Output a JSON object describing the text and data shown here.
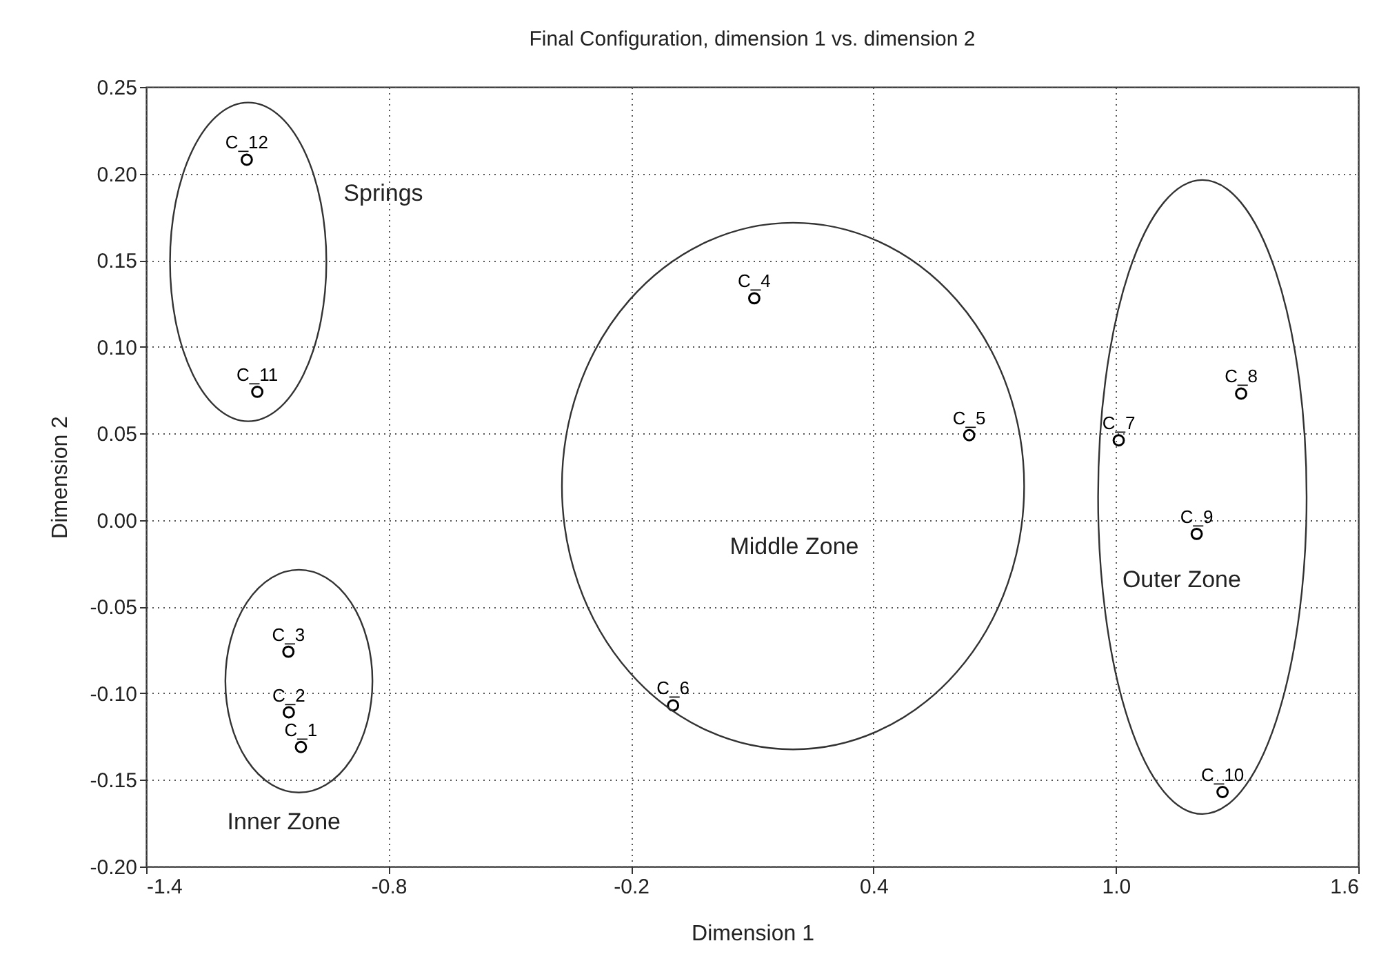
{
  "chart_data": {
    "type": "scatter",
    "title": "Final Configuration, dimension 1 vs. dimension 2",
    "xlabel": "Dimension 1",
    "ylabel": "Dimension 2",
    "series": [
      {
        "name": "C_1",
        "color": "#000000",
        "x": [
          -1.017
        ],
        "values": [
          -0.131
        ]
      },
      {
        "name": "C_2",
        "color": "#000000",
        "x": [
          -1.047
        ],
        "values": [
          -0.111
        ]
      },
      {
        "name": "C_3",
        "color": "#000000",
        "x": [
          -1.048
        ],
        "values": [
          -0.076
        ]
      },
      {
        "name": "C_4",
        "color": "#000000",
        "x": [
          0.105
        ],
        "values": [
          0.128
        ]
      },
      {
        "name": "C_5",
        "color": "#000000",
        "x": [
          0.637
        ],
        "values": [
          0.049
        ]
      },
      {
        "name": "C_6",
        "color": "#000000",
        "x": [
          -0.096
        ],
        "values": [
          -0.107
        ]
      },
      {
        "name": "C_7",
        "color": "#000000",
        "x": [
          1.007
        ],
        "values": [
          0.046
        ]
      },
      {
        "name": "C_8",
        "color": "#000000",
        "x": [
          1.31
        ],
        "values": [
          0.073
        ]
      },
      {
        "name": "C_9",
        "color": "#000000",
        "x": [
          1.2
        ],
        "values": [
          -0.008
        ]
      },
      {
        "name": "C_10",
        "color": "#000000",
        "x": [
          1.264
        ],
        "values": [
          -0.157
        ]
      },
      {
        "name": "C_11",
        "color": "#000000",
        "x": [
          -1.125
        ],
        "values": [
          0.074
        ]
      },
      {
        "name": "C_12",
        "color": "#000000",
        "x": [
          -1.151
        ],
        "values": [
          0.208
        ]
      }
    ],
    "marker": "circle",
    "xlim": [
      -1.4,
      1.6
    ],
    "xticks": [
      {
        "value": -1.4,
        "label": "-1.4"
      },
      {
        "value": -0.8,
        "label": "-0.8"
      },
      {
        "value": -0.2,
        "label": "-0.2"
      },
      {
        "value": 0.4,
        "label": "0.4"
      },
      {
        "value": 1.0,
        "label": "1.0"
      },
      {
        "value": 1.6,
        "label": "1.6"
      }
    ],
    "ylim": [
      -0.2,
      0.25
    ],
    "yticks": [
      {
        "value": -0.2,
        "label": "-0.20"
      },
      {
        "value": -0.15,
        "label": "-0.15"
      },
      {
        "value": -0.1,
        "label": "-0.10"
      },
      {
        "value": -0.05,
        "label": "-0.05"
      },
      {
        "value": 0,
        "label": "0.00"
      },
      {
        "value": 0.05,
        "label": "0.05"
      },
      {
        "value": 0.1,
        "label": "0.10"
      },
      {
        "value": 0.15,
        "label": "0.15"
      },
      {
        "value": 0.2,
        "label": "0.20"
      },
      {
        "value": 0.25,
        "label": "0.25"
      }
    ],
    "grid": true,
    "annotations": [
      "Springs",
      "Inner Zone",
      "Middle Zone",
      "Outer Zone"
    ]
  }
}
